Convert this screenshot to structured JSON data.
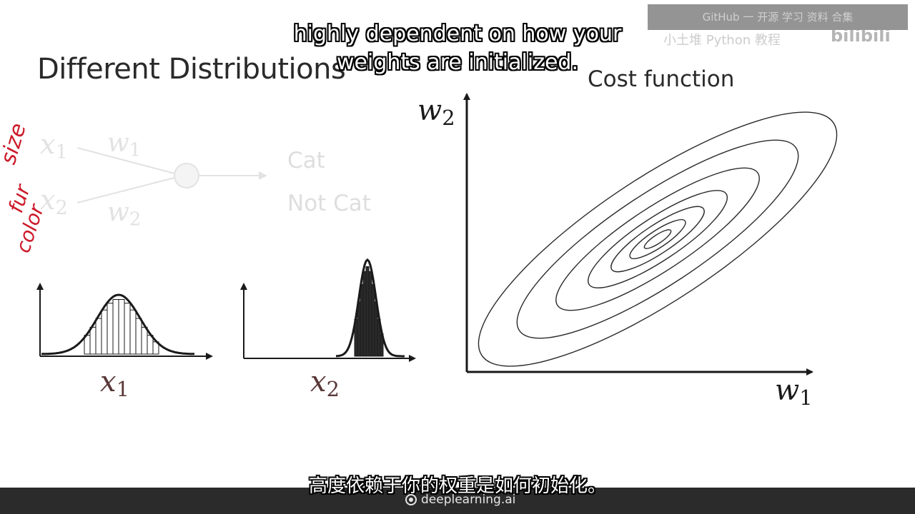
{
  "slide": {
    "title": "Different Distributions",
    "cost_title": "Cost function"
  },
  "network": {
    "input1_var": "x",
    "input1_sub": "1",
    "input2_var": "x",
    "input2_sub": "2",
    "weight1_var": "w",
    "weight1_sub": "1",
    "weight2_var": "w",
    "weight2_sub": "2",
    "output_cat": "Cat",
    "output_not_cat": "Not Cat"
  },
  "distributions": {
    "x1_var": "x",
    "x1_sub": "1",
    "x2_var": "x",
    "x2_sub": "2"
  },
  "cost_plot": {
    "y_axis_var": "w",
    "y_axis_sub": "2",
    "x_axis_var": "w",
    "x_axis_sub": "1"
  },
  "annotations": [
    "size",
    "fur",
    "color"
  ],
  "subtitles": {
    "en_line1": "highly dependent on how your",
    "en_line2": "weights are initialized.",
    "zh": "高度依赖于你的权重是如何初始化。"
  },
  "brand": {
    "name": "deeplearning.ai"
  },
  "watermark": {
    "line1": "GitHub 一 开源 学习 资料 合集",
    "line2": "小土堆 Python 教程",
    "logo": "bilibili"
  },
  "colors": {
    "annotation": "#cc1a2a",
    "faded": "#dedede",
    "text": "#2a2a2a",
    "bar": "#2b2b2b"
  }
}
